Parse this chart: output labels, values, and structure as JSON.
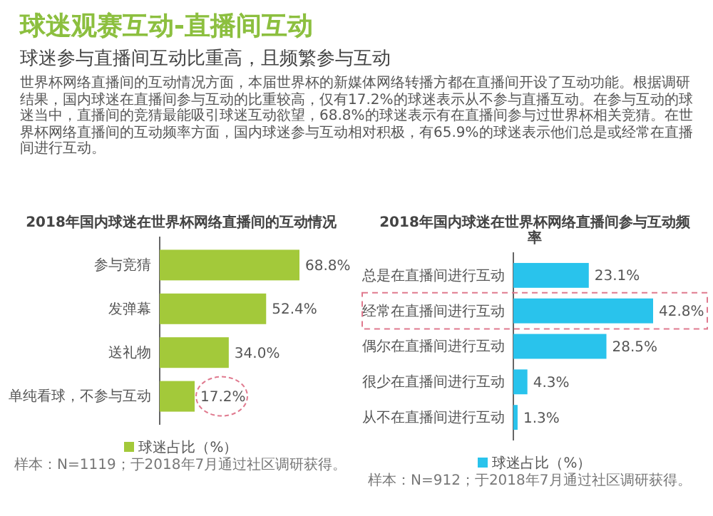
{
  "chart_data": [
    {
      "type": "other",
      "title": "球迷观赛互动-直播间互动",
      "subtitle": "球迷参与直播间互动比重高，且频繁参与互动",
      "annotations": [
        "世界杯网络直播间的互动情况方面，本届世界杯的新媒体网络转播方都在直播间开设了互动功能。根据调研结果，国内球迷在直播间参与互动的比重较高，仅有17.2%的球迷表示从不参与直播互动。在参与互动的球迷当中，直播间的竞猜最能吸引球迷互动欲望，68.8%的球迷表示有在直播间参与过世界杯相关竞猜。在世界杯网络直播间的互动频率方面，国内球迷参与互动相对积极，有65.9%的球迷表示他们总是或经常在直播间进行互动。"
      ]
    },
    {
      "type": "bar",
      "orientation": "horizontal",
      "title": "2018年国内球迷在世界杯网络直播间的互动情况",
      "categories": [
        "参与竞猜",
        "发弹幕",
        "送礼物",
        "单纯看球，不参与互动"
      ],
      "series": [
        {
          "name": "球迷占比（%）",
          "color": "#a3c93a",
          "values": [
            68.8,
            52.4,
            34.0,
            17.2
          ],
          "value_labels": [
            "68.8%",
            "52.4%",
            "34.0%",
            "17.2%"
          ]
        }
      ],
      "legend": "bottom",
      "annotations": [
        "样本：N=1119；于2018年7月通过社区调研获得。"
      ]
    },
    {
      "type": "bar",
      "orientation": "horizontal",
      "title": "2018年国内球迷在世界杯网络直播间参与互动频率",
      "categories": [
        "总是在直播间进行互动",
        "经常在直播间进行互动",
        "偶尔在直播间进行互动",
        "很少在直播间进行互动",
        "从不在直播间进行互动"
      ],
      "series": [
        {
          "name": "球迷占比（%）",
          "color": "#29c3ec",
          "values": [
            23.1,
            42.8,
            28.5,
            4.3,
            1.3
          ],
          "value_labels": [
            "23.1%",
            "42.8%",
            "28.5%",
            "4.3%",
            "1.3%"
          ]
        }
      ],
      "legend": "bottom",
      "annotations": [
        "样本：N=912；于2018年7月通过社区调研获得。"
      ]
    }
  ]
}
